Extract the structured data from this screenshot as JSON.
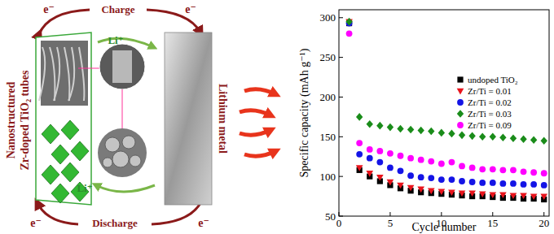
{
  "chart_data": {
    "type": "scatter",
    "x_label": "Cycle number",
    "y_label": "Specific capacity (mAh g⁻¹)",
    "x": [
      1,
      2,
      3,
      4,
      5,
      6,
      7,
      8,
      9,
      10,
      11,
      12,
      13,
      14,
      15,
      16,
      17,
      18,
      19,
      20
    ],
    "xlim": [
      0,
      20.5
    ],
    "xticks": [
      0,
      5,
      10,
      15,
      20
    ],
    "ylim": [
      50,
      310
    ],
    "yticks": [
      50,
      100,
      150,
      200,
      250,
      300
    ],
    "legend": "upper right",
    "series": [
      {
        "name": "undoped TiO₂",
        "color": "#000000",
        "marker": "square",
        "values": [
          293,
          108,
          100,
          94,
          89,
          85,
          82,
          80,
          79,
          78,
          77,
          76,
          75,
          75,
          74,
          73,
          73,
          72,
          72,
          71
        ]
      },
      {
        "name": "Zr/Ti = 0.01",
        "color": "#e8141c",
        "marker": "triangle-down",
        "values": [
          295,
          111,
          104,
          99,
          93,
          89,
          86,
          84,
          82,
          81,
          80,
          79,
          79,
          78,
          77,
          77,
          76,
          76,
          75,
          75
        ]
      },
      {
        "name": "Zr/Ti = 0.02",
        "color": "#1414e6",
        "marker": "circle",
        "values": [
          293,
          128,
          123,
          118,
          111,
          107,
          101,
          99,
          98,
          96,
          96,
          94,
          93,
          92,
          92,
          91,
          91,
          90,
          90,
          89
        ]
      },
      {
        "name": "Zr/Ti = 0.03",
        "color": "#1a8c1a",
        "marker": "diamond",
        "values": [
          295,
          175,
          166,
          164,
          162,
          160,
          159,
          158,
          157,
          155,
          154,
          152,
          151,
          150,
          150,
          149,
          148,
          147,
          146,
          145
        ]
      },
      {
        "name": "Zr/Ti = 0.09",
        "color": "#ff00ff",
        "marker": "circle",
        "values": [
          280,
          142,
          134,
          132,
          129,
          126,
          123,
          121,
          119,
          116,
          118,
          113,
          111,
          109,
          109,
          108,
          108,
          106,
          105,
          104
        ]
      }
    ]
  },
  "diagram": {
    "charge": "Charge",
    "discharge": "Discharge",
    "electrons": [
      "e⁻",
      "e⁻",
      "e⁻",
      "e⁻"
    ],
    "lithium_ions": [
      "Li⁺",
      "Li⁺"
    ],
    "anode_label": [
      "Nanostructured",
      "Zr-doped TiO₂ tubes"
    ],
    "cathode_label": "Lithium metal"
  }
}
